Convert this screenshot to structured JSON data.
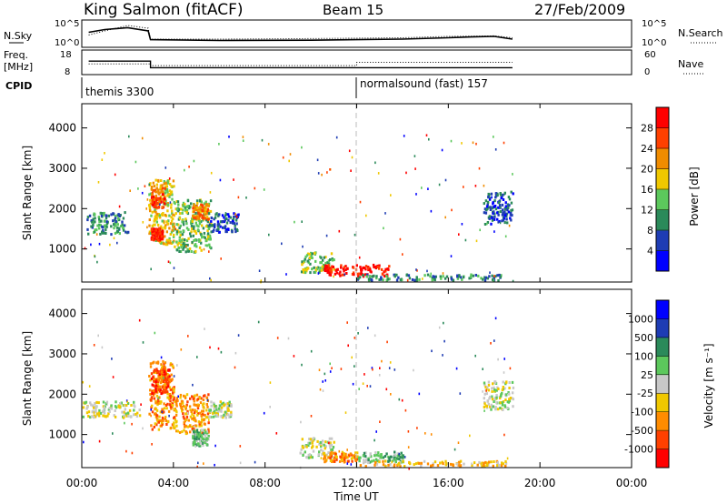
{
  "header": {
    "station": "King Salmon (fitACF)",
    "beam": "Beam 15",
    "date": "27/Feb/2009"
  },
  "meta_labels": {
    "nsky": "N.Sky",
    "freq_line1": "Freq.",
    "freq_line2": "[MHz]",
    "cpid": "CPID",
    "nsearch": "N.Search",
    "nave": "Nave",
    "nsky_ticks": [
      "10^5",
      "10^0"
    ],
    "nsearch_ticks": [
      "10^5",
      "10^0"
    ],
    "freq_ticks": [
      "18",
      "8"
    ],
    "nave_ticks": [
      "60",
      "0"
    ]
  },
  "cpid_modes": [
    {
      "label": "themis 3300",
      "start": "00:00"
    },
    {
      "label": "normalsound (fast) 157",
      "start": "12:00"
    }
  ],
  "x_axis": {
    "label": "Time UT",
    "ticks": [
      "00:00",
      "04:00",
      "08:00",
      "12:00",
      "16:00",
      "20:00",
      "00:00"
    ],
    "range_hours": [
      0,
      24
    ]
  },
  "chart_data": [
    {
      "type": "line",
      "panel": "noise",
      "series": [
        {
          "name": "N.Sky",
          "x": [
            0.3,
            1,
            2,
            2.9,
            3,
            6,
            10,
            14,
            16,
            17,
            18,
            18.8
          ],
          "y": [
            0.55,
            0.65,
            0.72,
            0.6,
            0.28,
            0.25,
            0.26,
            0.3,
            0.35,
            0.38,
            0.4,
            0.3
          ]
        },
        {
          "name": "N.Search",
          "x": [
            0.3,
            1,
            2,
            2.9,
            3,
            6,
            10,
            14,
            16,
            18,
            18.8
          ],
          "y": [
            0.45,
            0.6,
            0.8,
            0.7,
            0.3,
            0.3,
            0.32,
            0.35,
            0.4,
            0.42,
            0.35
          ]
        }
      ]
    },
    {
      "type": "line",
      "panel": "frequency",
      "series": [
        {
          "name": "Freq.",
          "x": [
            0.3,
            3.0,
            3.0,
            18.8
          ],
          "y": [
            13.5,
            13.5,
            10.8,
            10.8
          ]
        },
        {
          "name": "Nave",
          "x": [
            0.3,
            3.0,
            3.0,
            12.0,
            12.0,
            18.8
          ],
          "y": [
            26,
            26,
            22,
            22,
            30,
            30
          ]
        }
      ]
    },
    {
      "type": "heatmap",
      "panel": "power",
      "title": "",
      "xlabel": "",
      "ylabel": "Slant Range [km]",
      "ylim": [
        180,
        4600
      ],
      "yticks": [
        "4000",
        "3000",
        "2000",
        "1000"
      ],
      "colorbar": {
        "label": "Power [dB]",
        "ticks": [
          "28",
          "24",
          "20",
          "16",
          "12",
          "8",
          "4"
        ],
        "colors": [
          "#0000ff",
          "#1e3cb4",
          "#2b8a5a",
          "#5cc85c",
          "#f0c800",
          "#f08c00",
          "#ff4000",
          "#ff0000"
        ]
      },
      "regions": [
        {
          "t": [
            0.2,
            2.0
          ],
          "r": [
            1350,
            1900
          ],
          "level": 2
        },
        {
          "t": [
            2.9,
            4.0
          ],
          "r": [
            1100,
            2700
          ],
          "level": 4
        },
        {
          "t": [
            3.0,
            3.6
          ],
          "r": [
            2000,
            2500
          ],
          "level": 6
        },
        {
          "t": [
            4.0,
            5.6
          ],
          "r": [
            900,
            2200
          ],
          "level": 3
        },
        {
          "t": [
            4.8,
            5.5
          ],
          "r": [
            1700,
            2100
          ],
          "level": 5
        },
        {
          "t": [
            3.0,
            3.5
          ],
          "r": [
            1200,
            1500
          ],
          "level": 7
        },
        {
          "t": [
            5.5,
            6.8
          ],
          "r": [
            1400,
            1900
          ],
          "level": 1
        },
        {
          "t": [
            9.5,
            11.0
          ],
          "r": [
            400,
            900
          ],
          "level": 3
        },
        {
          "t": [
            10.5,
            13.5
          ],
          "r": [
            300,
            600
          ],
          "level": 7
        },
        {
          "t": [
            12.0,
            18.5
          ],
          "r": [
            200,
            350
          ],
          "level": 2
        },
        {
          "t": [
            17.5,
            18.8
          ],
          "r": [
            1600,
            2400
          ],
          "level": 1
        }
      ]
    },
    {
      "type": "heatmap",
      "panel": "velocity",
      "title": "",
      "xlabel": "Time UT",
      "ylabel": "Slant Range [km]",
      "ylim": [
        180,
        4600
      ],
      "yticks": [
        "4000",
        "3000",
        "2000",
        "1000"
      ],
      "colorbar": {
        "label": "Velocity [m s⁻¹]",
        "ticks": [
          "1000",
          "500",
          "100",
          "25",
          "-25",
          "-100",
          "-500",
          "-1000"
        ],
        "colors": [
          "#ff0000",
          "#ff4000",
          "#ff8c00",
          "#f0c800",
          "#c8c8c8",
          "#5cc85c",
          "#2b8a5a",
          "#1e3cb4",
          "#0000ff"
        ]
      },
      "regions": [
        {
          "t": [
            0.0,
            2.5
          ],
          "r": [
            1400,
            1800
          ],
          "level": 4
        },
        {
          "t": [
            2.9,
            4.0
          ],
          "r": [
            1100,
            2800
          ],
          "level": 2
        },
        {
          "t": [
            3.0,
            3.8
          ],
          "r": [
            2000,
            2600
          ],
          "level": 1
        },
        {
          "t": [
            4.0,
            5.5
          ],
          "r": [
            1000,
            2000
          ],
          "level": 2
        },
        {
          "t": [
            4.8,
            5.5
          ],
          "r": [
            700,
            1100
          ],
          "level": 5
        },
        {
          "t": [
            5.5,
            6.5
          ],
          "r": [
            1400,
            1800
          ],
          "level": 4
        },
        {
          "t": [
            9.5,
            11.0
          ],
          "r": [
            400,
            900
          ],
          "level": 4
        },
        {
          "t": [
            10.5,
            12.0
          ],
          "r": [
            300,
            550
          ],
          "level": 2
        },
        {
          "t": [
            12.0,
            14.0
          ],
          "r": [
            280,
            560
          ],
          "level": 5
        },
        {
          "t": [
            12.0,
            18.5
          ],
          "r": [
            200,
            330
          ],
          "level": 3
        },
        {
          "t": [
            17.5,
            18.8
          ],
          "r": [
            1600,
            2300
          ],
          "level": 4
        }
      ]
    }
  ]
}
